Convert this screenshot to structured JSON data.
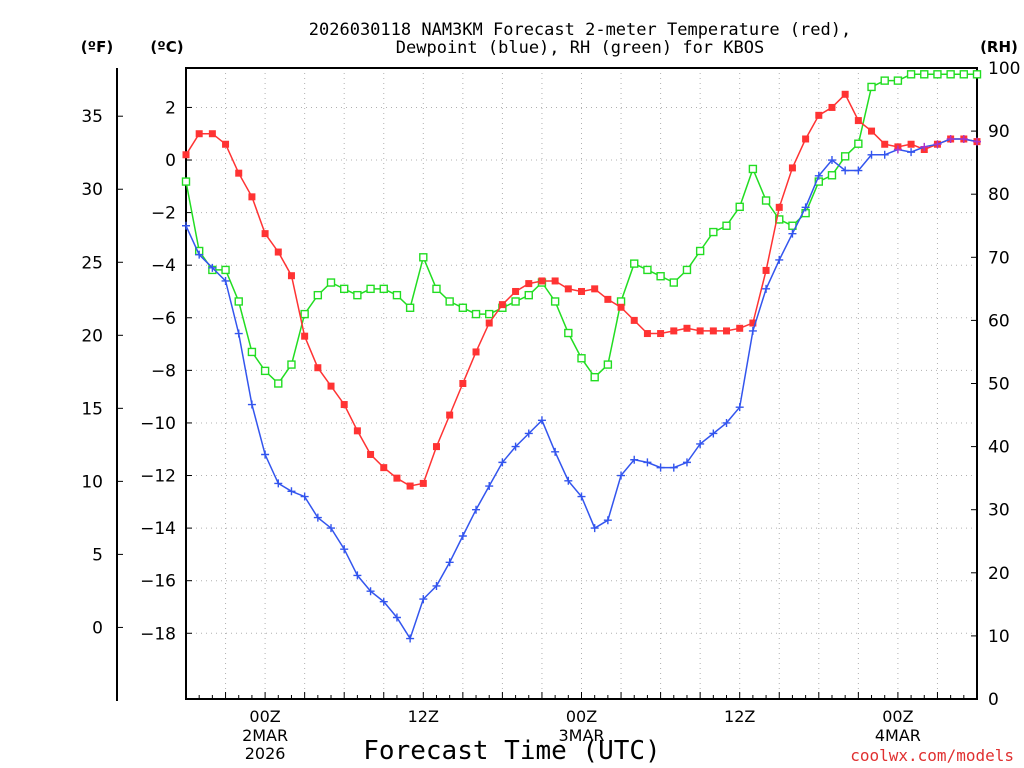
{
  "chart_data": {
    "type": "line",
    "title": [
      "2026030118 NAM3KM Forecast 2-meter Temperature (red),",
      "Dewpoint (blue), RH (green) for KBOS"
    ],
    "xlabel": "Forecast Time (UTC)",
    "ylabel_left_outer": "(ºF)",
    "ylabel_left": "(ºC)",
    "ylabel_right": "(RH)",
    "x_unit": "forecast hour from 2026030118",
    "xlim": [
      0,
      60
    ],
    "ylim_c": [
      -20.5,
      3.5
    ],
    "ylim_rh": [
      0,
      100
    ],
    "c_ticks": [
      2,
      0,
      -2,
      -4,
      -6,
      -8,
      -10,
      -12,
      -14,
      -16,
      -18
    ],
    "f_ticks": [
      35,
      30,
      25,
      20,
      15,
      10,
      5,
      0
    ],
    "rh_ticks": [
      100,
      90,
      80,
      70,
      60,
      50,
      40,
      30,
      20,
      10,
      0
    ],
    "x_ticks": [
      {
        "hour": 6,
        "label": "00Z",
        "sub1": "2MAR",
        "sub2": "2026"
      },
      {
        "hour": 18,
        "label": "12Z",
        "sub1": "",
        "sub2": ""
      },
      {
        "hour": 30,
        "label": "00Z",
        "sub1": "3MAR",
        "sub2": ""
      },
      {
        "hour": 42,
        "label": "12Z",
        "sub1": "",
        "sub2": ""
      },
      {
        "hour": 54,
        "label": "00Z",
        "sub1": "4MAR",
        "sub2": ""
      }
    ],
    "credit": "coolwx.com/models",
    "colors": {
      "temperature": "#ff3333",
      "dewpoint": "#3355ee",
      "rh": "#22dd22",
      "overlap": "#aa33cc"
    },
    "series": [
      {
        "name": "Temperature",
        "units": "C",
        "values": [
          0.2,
          1.0,
          1.0,
          0.6,
          -0.5,
          -1.4,
          -2.8,
          -3.5,
          -4.4,
          -6.7,
          -7.9,
          -8.6,
          -9.3,
          -10.3,
          -11.2,
          -11.7,
          -12.1,
          -12.4,
          -12.3,
          -10.9,
          -9.7,
          -8.5,
          -7.3,
          -6.2,
          -5.5,
          -5.0,
          -4.7,
          -4.6,
          -4.6,
          -4.9,
          -5.0,
          -4.9,
          -5.3,
          -5.6,
          -6.1,
          -6.6,
          -6.6,
          -6.5,
          -6.4,
          -6.5,
          -6.5,
          -6.5,
          -6.4,
          -6.2,
          -4.2,
          -1.8,
          -0.3,
          0.8,
          1.7,
          2.0,
          2.5,
          1.5,
          1.1,
          0.6,
          0.5,
          0.6,
          0.4,
          0.6,
          0.8,
          0.8,
          0.7
        ]
      },
      {
        "name": "Dewpoint",
        "units": "C",
        "values": [
          -2.5,
          -3.6,
          -4.1,
          -4.6,
          -6.6,
          -9.3,
          -11.2,
          -12.3,
          -12.6,
          -12.8,
          -13.6,
          -14.0,
          -14.8,
          -15.8,
          -16.4,
          -16.8,
          -17.4,
          -18.2,
          -16.7,
          -16.2,
          -15.3,
          -14.3,
          -13.3,
          -12.4,
          -11.5,
          -10.9,
          -10.4,
          -9.9,
          -11.1,
          -12.2,
          -12.8,
          -14.0,
          -13.7,
          -12.0,
          -11.4,
          -11.5,
          -11.7,
          -11.7,
          -11.5,
          -10.8,
          -10.4,
          -10.0,
          -9.4,
          -6.5,
          -4.9,
          -3.8,
          -2.8,
          -1.8,
          -0.6,
          0.0,
          -0.4,
          -0.4,
          0.2,
          0.2,
          0.4,
          0.3,
          0.5,
          0.6,
          0.8,
          0.8,
          0.7
        ]
      },
      {
        "name": "RH",
        "units": "%",
        "values": [
          82,
          71,
          68,
          68,
          63,
          55,
          52,
          50,
          53,
          61,
          64,
          66,
          65,
          64,
          65,
          65,
          64,
          62,
          70,
          65,
          63,
          62,
          61,
          61,
          62,
          63,
          64,
          66,
          63,
          58,
          54,
          51,
          53,
          63,
          69,
          68,
          67,
          66,
          68,
          71,
          74,
          75,
          78,
          84,
          79,
          76,
          75,
          77,
          82,
          83,
          86,
          88,
          97,
          98,
          98,
          99,
          99,
          99,
          99,
          99,
          99
        ]
      }
    ]
  }
}
